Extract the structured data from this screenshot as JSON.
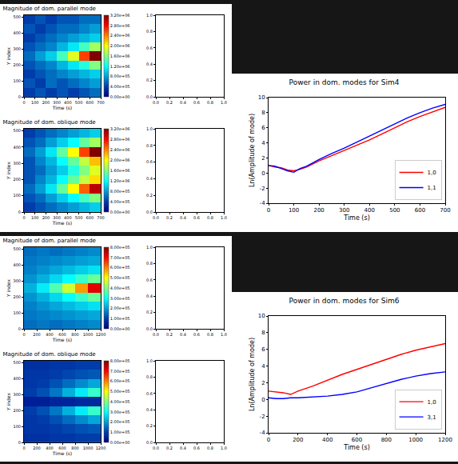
{
  "chart_data": [
    {
      "type": "heatmap",
      "title": "Magnitude of dom. parallel mode",
      "x_label": "Time (s)",
      "y_label": "Y index",
      "color": "Jet",
      "grid": false,
      "x": [
        50,
        150,
        250,
        350,
        450,
        550,
        650
      ],
      "y": [
        28,
        85,
        142,
        199,
        256,
        313,
        370,
        427,
        484
      ],
      "z": [
        [
          400000.0,
          500000.0,
          400000.0,
          500000.0,
          400000.0,
          500000.0,
          600000.0
        ],
        [
          500000.0,
          400000.0,
          600000.0,
          500000.0,
          600000.0,
          700000.0,
          800000.0
        ],
        [
          400000.0,
          500000.0,
          600000.0,
          700000.0,
          800000.0,
          900000.0,
          1000000.0
        ],
        [
          500000.0,
          600000.0,
          700000.0,
          900000.0,
          1100000.0,
          1300000.0,
          1600000.0
        ],
        [
          600000.0,
          800000.0,
          1000000.0,
          1400000.0,
          1900000.0,
          2600000.0,
          3200000.0
        ],
        [
          500000.0,
          600000.0,
          700000.0,
          900000.0,
          1100000.0,
          1400000.0,
          1700000.0
        ],
        [
          400000.0,
          500000.0,
          600000.0,
          700000.0,
          800000.0,
          900000.0,
          1000000.0
        ],
        [
          500000.0,
          400000.0,
          500000.0,
          600000.0,
          600000.0,
          700000.0,
          800000.0
        ],
        [
          400000.0,
          500000.0,
          400000.0,
          500000.0,
          500000.0,
          600000.0,
          600000.0
        ]
      ],
      "xlim": [
        0,
        700
      ],
      "xticks": [
        0,
        100,
        200,
        300,
        400,
        500,
        600,
        700
      ],
      "ylim": [
        0,
        512
      ],
      "yticks": [
        0,
        100,
        200,
        300,
        400,
        500
      ],
      "zlim": [
        0,
        3200000
      ],
      "zticks": [
        {
          "value": 0,
          "label": "0.00e+00"
        },
        {
          "value": 400000,
          "label": "4.00e+05"
        },
        {
          "value": 800000,
          "label": "8.00e+05"
        },
        {
          "value": 1200000,
          "label": "1.20e+06"
        },
        {
          "value": 1600000,
          "label": "1.60e+06"
        },
        {
          "value": 2000000,
          "label": "2.00e+06"
        },
        {
          "value": 2400000,
          "label": "2.40e+06"
        },
        {
          "value": 2800000,
          "label": "2.80e+06"
        },
        {
          "value": 3200000,
          "label": "3.20e+06"
        }
      ]
    },
    {
      "type": "empty",
      "xlim": [
        0,
        1
      ],
      "ylim": [
        0,
        1
      ],
      "xticks": [
        {
          "value": 0,
          "label": "0.0"
        },
        0.2,
        0.4,
        0.6,
        0.8,
        {
          "value": 1,
          "label": "1.0"
        }
      ],
      "yticks": [
        {
          "value": 0,
          "label": "0.0"
        },
        0.2,
        0.4,
        0.6,
        0.8,
        {
          "value": 1,
          "label": "1.0"
        }
      ]
    },
    {
      "type": "heatmap",
      "title": "Magnitude of dom. oblique mode",
      "x_label": "Time (s)",
      "y_label": "Y index",
      "color": "Jet",
      "grid": false,
      "x": [
        50,
        150,
        250,
        350,
        450,
        550,
        650
      ],
      "y": [
        28,
        85,
        142,
        199,
        256,
        313,
        370,
        427,
        484
      ],
      "z": [
        [
          400000.0,
          500000.0,
          600000.0,
          700000.0,
          800000.0,
          900000.0,
          1000000.0
        ],
        [
          500000.0,
          600000.0,
          800000.0,
          1000000.0,
          1200000.0,
          1400000.0,
          1600000.0
        ],
        [
          600000.0,
          800000.0,
          1100000.0,
          1500000.0,
          2000000.0,
          2500000.0,
          3000000.0
        ],
        [
          500000.0,
          700000.0,
          900000.0,
          1200000.0,
          1500000.0,
          1800000.0,
          2100000.0
        ],
        [
          500000.0,
          600000.0,
          800000.0,
          1000000.0,
          1300000.0,
          1600000.0,
          1900000.0
        ],
        [
          500000.0,
          700000.0,
          900000.0,
          1200000.0,
          1500000.0,
          1800000.0,
          2200000.0
        ],
        [
          600000.0,
          800000.0,
          1100000.0,
          1500000.0,
          2000000.0,
          2600000.0,
          3200000.0
        ],
        [
          500000.0,
          600000.0,
          800000.0,
          1000000.0,
          1200000.0,
          1500000.0,
          1700000.0
        ],
        [
          400000.0,
          500000.0,
          600000.0,
          700000.0,
          800000.0,
          900000.0,
          1000000.0
        ]
      ],
      "xlim": [
        0,
        700
      ],
      "xticks": [
        0,
        100,
        200,
        300,
        400,
        500,
        600,
        700
      ],
      "ylim": [
        0,
        512
      ],
      "yticks": [
        0,
        100,
        200,
        300,
        400,
        500
      ],
      "zlim": [
        0,
        3200000
      ],
      "zticks": [
        {
          "value": 0,
          "label": "0.00e+00"
        },
        {
          "value": 400000,
          "label": "4.00e+05"
        },
        {
          "value": 800000,
          "label": "8.00e+05"
        },
        {
          "value": 1200000,
          "label": "1.20e+06"
        },
        {
          "value": 1600000,
          "label": "1.60e+06"
        },
        {
          "value": 2000000,
          "label": "2.00e+06"
        },
        {
          "value": 2400000,
          "label": "2.40e+06"
        },
        {
          "value": 2800000,
          "label": "2.80e+06"
        },
        {
          "value": 3200000,
          "label": "3.20e+06"
        }
      ]
    },
    {
      "type": "empty",
      "xlim": [
        0,
        1
      ],
      "ylim": [
        0,
        1
      ],
      "xticks": [
        {
          "value": 0,
          "label": "0.0"
        },
        0.2,
        0.4,
        0.6,
        0.8,
        {
          "value": 1,
          "label": "1.0"
        }
      ],
      "yticks": [
        {
          "value": 0,
          "label": "0.0"
        },
        0.2,
        0.4,
        0.6,
        0.8,
        {
          "value": 1,
          "label": "1.0"
        }
      ]
    },
    {
      "type": "line",
      "title": "Power in dom. modes for Sim4",
      "x_label": "Time (s)",
      "y_label": "Ln(Amplitude of mode)",
      "grid": false,
      "legend": "lower right",
      "x": [
        0,
        25,
        50,
        75,
        100,
        125,
        150,
        200,
        250,
        300,
        350,
        400,
        450,
        500,
        550,
        600,
        650,
        700
      ],
      "series": [
        {
          "name": "1,0",
          "color": "#ff0000",
          "values": [
            1.0,
            0.8,
            0.7,
            0.4,
            0.3,
            0.5,
            0.8,
            1.6,
            2.3,
            3.0,
            3.7,
            4.4,
            5.2,
            6.0,
            6.8,
            7.5,
            8.1,
            8.7
          ]
        },
        {
          "name": "1,1",
          "color": "#0000ff",
          "values": [
            1.0,
            0.9,
            0.6,
            0.3,
            0.1,
            0.6,
            0.9,
            1.8,
            2.6,
            3.3,
            4.1,
            4.9,
            5.7,
            6.5,
            7.3,
            8.0,
            8.6,
            9.1
          ]
        }
      ],
      "xlim": [
        0,
        700
      ],
      "xticks": [
        0,
        100,
        200,
        300,
        400,
        500,
        600,
        700
      ],
      "ylim": [
        -4,
        10
      ],
      "yticks": [
        -4,
        -2,
        0,
        2,
        4,
        6,
        8,
        10
      ]
    },
    {
      "type": "heatmap",
      "title": "Magnitude of dom. parallel mode",
      "x_label": "Time (s)",
      "y_label": "Y index",
      "color": "Jet",
      "grid": false,
      "x": [
        100,
        300,
        500,
        700,
        900,
        1100
      ],
      "y": [
        28,
        85,
        142,
        199,
        256,
        313,
        370,
        427,
        484
      ],
      "z": [
        [
          150000.0,
          160000.0,
          150000.0,
          160000.0,
          170000.0,
          180000.0
        ],
        [
          160000.0,
          170000.0,
          180000.0,
          190000.0,
          200000.0,
          210000.0
        ],
        [
          170000.0,
          190000.0,
          210000.0,
          230000.0,
          250000.0,
          270000.0
        ],
        [
          190000.0,
          220000.0,
          260000.0,
          300000.0,
          340000.0,
          380000.0
        ],
        [
          220000.0,
          280000.0,
          360000.0,
          460000.0,
          580000.0,
          720000.0
        ],
        [
          190000.0,
          220000.0,
          260000.0,
          300000.0,
          340000.0,
          380000.0
        ],
        [
          170000.0,
          190000.0,
          210000.0,
          230000.0,
          250000.0,
          270000.0
        ],
        [
          160000.0,
          170000.0,
          180000.0,
          190000.0,
          200000.0,
          210000.0
        ],
        [
          150000.0,
          160000.0,
          150000.0,
          160000.0,
          170000.0,
          180000.0
        ]
      ],
      "xlim": [
        0,
        1200
      ],
      "xticks": [
        0,
        200,
        400,
        600,
        800,
        1000,
        1200
      ],
      "ylim": [
        0,
        512
      ],
      "yticks": [
        0,
        100,
        200,
        300,
        400,
        500
      ],
      "zlim": [
        0,
        800000
      ],
      "zticks": [
        {
          "value": 0,
          "label": "0.00e+00"
        },
        {
          "value": 100000,
          "label": "1.00e+05"
        },
        {
          "value": 200000,
          "label": "2.00e+05"
        },
        {
          "value": 300000,
          "label": "3.00e+05"
        },
        {
          "value": 400000,
          "label": "4.00e+05"
        },
        {
          "value": 500000,
          "label": "5.00e+05"
        },
        {
          "value": 600000,
          "label": "6.00e+05"
        },
        {
          "value": 700000,
          "label": "7.00e+05"
        },
        {
          "value": 800000,
          "label": "8.00e+05"
        }
      ]
    },
    {
      "type": "empty",
      "xlim": [
        0,
        1
      ],
      "ylim": [
        0,
        1
      ],
      "xticks": [
        {
          "value": 0,
          "label": "0.0"
        },
        0.2,
        0.4,
        0.6,
        0.8,
        {
          "value": 1,
          "label": "1.0"
        }
      ],
      "yticks": [
        {
          "value": 0,
          "label": "0.0"
        },
        0.2,
        0.4,
        0.6,
        0.8,
        {
          "value": 1,
          "label": "1.0"
        }
      ]
    },
    {
      "type": "heatmap",
      "title": "Magnitude of dom. oblique mode",
      "x_label": "Time (s)",
      "y_label": "Y index",
      "color": "Jet",
      "grid": false,
      "x": [
        100,
        300,
        500,
        700,
        900,
        1100
      ],
      "y": [
        28,
        85,
        142,
        199,
        256,
        313,
        370,
        427,
        484
      ],
      "z": [
        [
          80000.0,
          80000.0,
          90000.0,
          90000.0,
          100000.0,
          100000.0
        ],
        [
          90000.0,
          90000.0,
          100000.0,
          110000.0,
          120000.0,
          130000.0
        ],
        [
          90000.0,
          100000.0,
          120000.0,
          150000.0,
          180000.0,
          210000.0
        ],
        [
          100000.0,
          120000.0,
          160000.0,
          220000.0,
          280000.0,
          340000.0
        ],
        [
          50000.0,
          50000.0,
          60000.0,
          60000.0,
          70000.0,
          70000.0
        ],
        [
          100000.0,
          120000.0,
          160000.0,
          220000.0,
          280000.0,
          340000.0
        ],
        [
          90000.0,
          100000.0,
          120000.0,
          150000.0,
          180000.0,
          210000.0
        ],
        [
          90000.0,
          90000.0,
          100000.0,
          110000.0,
          120000.0,
          130000.0
        ],
        [
          80000.0,
          80000.0,
          90000.0,
          90000.0,
          100000.0,
          100000.0
        ]
      ],
      "xlim": [
        0,
        1200
      ],
      "xticks": [
        0,
        200,
        400,
        600,
        800,
        1000,
        1200
      ],
      "ylim": [
        0,
        512
      ],
      "yticks": [
        0,
        100,
        200,
        300,
        400,
        500
      ],
      "zlim": [
        0,
        800000
      ],
      "zticks": [
        {
          "value": 0,
          "label": "0.00e+00"
        },
        {
          "value": 100000,
          "label": "1.00e+05"
        },
        {
          "value": 200000,
          "label": "2.00e+05"
        },
        {
          "value": 300000,
          "label": "3.00e+05"
        },
        {
          "value": 400000,
          "label": "4.00e+05"
        },
        {
          "value": 500000,
          "label": "5.00e+05"
        },
        {
          "value": 600000,
          "label": "6.00e+05"
        },
        {
          "value": 700000,
          "label": "7.00e+05"
        },
        {
          "value": 800000,
          "label": "8.00e+05"
        }
      ]
    },
    {
      "type": "empty",
      "xlim": [
        0,
        1
      ],
      "ylim": [
        0,
        1
      ],
      "xticks": [
        {
          "value": 0,
          "label": "0.0"
        },
        0.2,
        0.4,
        0.6,
        0.8,
        {
          "value": 1,
          "label": "1.0"
        }
      ],
      "yticks": [
        {
          "value": 0,
          "label": "0.0"
        },
        0.2,
        0.4,
        0.6,
        0.8,
        {
          "value": 1,
          "label": "1.0"
        }
      ]
    },
    {
      "type": "line",
      "title": "Power in dom. modes for Sim6",
      "x_label": "Time (s)",
      "y_label": "Ln(Amplitude of mode)",
      "grid": false,
      "legend": "lower right",
      "x": [
        0,
        50,
        100,
        150,
        200,
        300,
        400,
        500,
        600,
        700,
        800,
        900,
        1000,
        1100,
        1200
      ],
      "series": [
        {
          "name": "1,0",
          "color": "#ff0000",
          "values": [
            1.0,
            0.9,
            0.8,
            0.6,
            1.0,
            1.6,
            2.3,
            3.0,
            3.6,
            4.2,
            4.8,
            5.4,
            5.9,
            6.3,
            6.7
          ]
        },
        {
          "name": "3,1",
          "color": "#0000ff",
          "values": [
            0.2,
            0.1,
            0.1,
            0.2,
            0.2,
            0.3,
            0.4,
            0.6,
            0.9,
            1.4,
            1.9,
            2.4,
            2.8,
            3.1,
            3.3
          ]
        }
      ],
      "xlim": [
        0,
        1200
      ],
      "xticks": [
        0,
        200,
        400,
        600,
        800,
        1000,
        1200
      ],
      "ylim": [
        -4,
        10
      ],
      "yticks": [
        -4,
        -2,
        0,
        2,
        4,
        6,
        8,
        10
      ]
    }
  ]
}
